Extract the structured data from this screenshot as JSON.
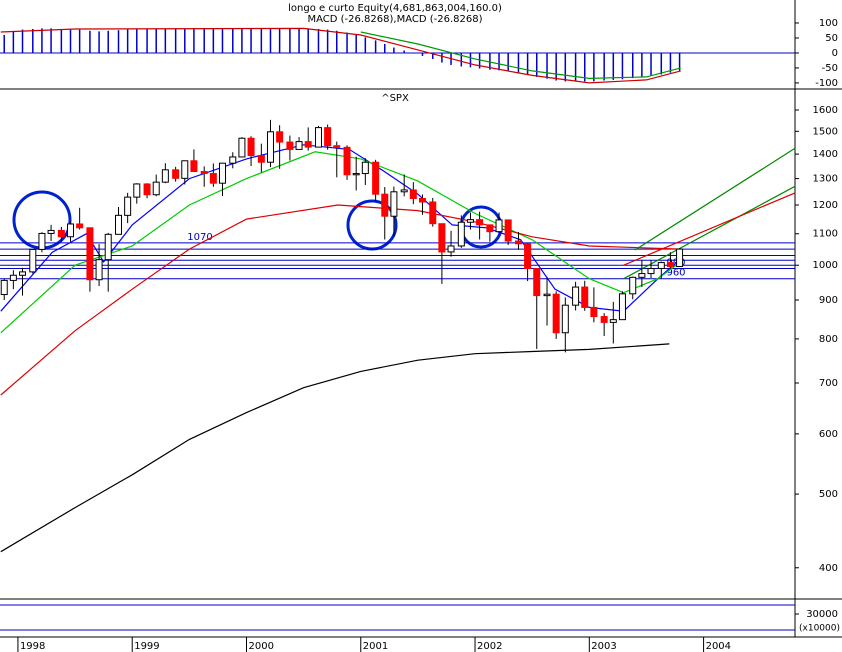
{
  "chart_data": [
    {
      "type": "bar",
      "title": "longo e curto Equity(4,681,863,004,160.0)",
      "subtitle": "MACD (-26.8268),MACD (-26.8268)",
      "x": [
        1997.88,
        1997.96,
        1998.04,
        1998.13,
        1998.21,
        1998.29,
        1998.38,
        1998.46,
        1998.54,
        1998.63,
        1998.71,
        1998.79,
        1998.88,
        1998.96,
        1999.04,
        1999.13,
        1999.21,
        1999.29,
        1999.38,
        1999.46,
        1999.54,
        1999.63,
        1999.71,
        1999.79,
        1999.88,
        1999.96,
        2000.04,
        2000.13,
        2000.21,
        2000.29,
        2000.38,
        2000.46,
        2000.54,
        2000.63,
        2000.71,
        2000.79,
        2000.88,
        2000.96,
        2001.04,
        2001.13,
        2001.21,
        2001.29,
        2001.38,
        2001.46,
        2001.54,
        2001.63,
        2001.71,
        2001.79,
        2001.88,
        2001.96,
        2002.04,
        2002.13,
        2002.21,
        2002.29,
        2002.38,
        2002.46,
        2002.54,
        2002.63,
        2002.71,
        2002.79,
        2002.88,
        2002.96,
        2003.04,
        2003.13,
        2003.21,
        2003.29,
        2003.38,
        2003.46,
        2003.54,
        2003.63,
        2003.71,
        2003.79
      ],
      "values": [
        60,
        70,
        78,
        80,
        82,
        82,
        80,
        80,
        78,
        74,
        72,
        74,
        76,
        78,
        80,
        80,
        80,
        80,
        80,
        80,
        80,
        80,
        80,
        80,
        80,
        80,
        82,
        82,
        82,
        82,
        82,
        82,
        82,
        80,
        78,
        74,
        68,
        60,
        52,
        42,
        30,
        18,
        8,
        0,
        -10,
        -20,
        -32,
        -40,
        -45,
        -48,
        -52,
        -56,
        -58,
        -62,
        -66,
        -72,
        -80,
        -86,
        -92,
        -95,
        -95,
        -95,
        -95,
        -92,
        -90,
        -88,
        -84,
        -80,
        -76,
        -72,
        -66,
        -60
      ],
      "color": "#0000cc",
      "lines": [
        {
          "color": "#cc0000",
          "x": [
            1997.85,
            1998.5,
            2000.5,
            2001.0,
            2001.5,
            2002.0,
            2002.5,
            2003.0,
            2003.5,
            2003.8
          ],
          "values": [
            70,
            80,
            82,
            60,
            10,
            -40,
            -75,
            -100,
            -90,
            -60
          ]
        },
        {
          "color": "#009900",
          "x": [
            2001.0,
            2001.5,
            2002.0,
            2002.5,
            2003.0,
            2003.5,
            2003.8
          ],
          "values": [
            70,
            30,
            -20,
            -60,
            -85,
            -80,
            -50
          ]
        }
      ],
      "xlim": [
        1997.843,
        2004.8
      ],
      "ylim": [
        -117,
        160
      ],
      "yticks": [
        100,
        50,
        0,
        -50,
        -100
      ]
    },
    {
      "type": "candlestick",
      "title": "^SPX",
      "x": [
        1997.88,
        1997.96,
        1998.04,
        1998.13,
        1998.21,
        1998.29,
        1998.38,
        1998.46,
        1998.54,
        1998.63,
        1998.71,
        1998.79,
        1998.88,
        1998.96,
        1999.04,
        1999.13,
        1999.21,
        1999.29,
        1999.38,
        1999.46,
        1999.54,
        1999.63,
        1999.71,
        1999.79,
        1999.88,
        1999.96,
        2000.04,
        2000.13,
        2000.21,
        2000.29,
        2000.38,
        2000.46,
        2000.54,
        2000.63,
        2000.71,
        2000.79,
        2000.88,
        2000.96,
        2001.04,
        2001.13,
        2001.21,
        2001.29,
        2001.38,
        2001.46,
        2001.54,
        2001.63,
        2001.71,
        2001.79,
        2001.88,
        2001.96,
        2002.04,
        2002.13,
        2002.21,
        2002.29,
        2002.38,
        2002.46,
        2002.54,
        2002.63,
        2002.71,
        2002.79,
        2002.88,
        2002.96,
        2003.04,
        2003.13,
        2003.21,
        2003.29,
        2003.38,
        2003.46,
        2003.54,
        2003.63,
        2003.71,
        2003.79
      ],
      "open": [
        915,
        955,
        970,
        980,
        1049,
        1101,
        1111,
        1090,
        1133,
        1120,
        957,
        1017,
        1098,
        1163,
        1229,
        1279,
        1238,
        1286,
        1335,
        1301,
        1372,
        1328,
        1320,
        1282,
        1362,
        1388,
        1469,
        1394,
        1366,
        1498,
        1452,
        1420,
        1454,
        1430,
        1517,
        1436,
        1429,
        1315,
        1320,
        1366,
        1240,
        1160,
        1249,
        1256,
        1224,
        1211,
        1134,
        1041,
        1060,
        1139,
        1148,
        1130,
        1107,
        1147,
        1076,
        1067,
        990,
        912,
        916,
        815,
        886,
        936,
        880,
        856,
        841,
        848,
        917,
        964,
        975,
        990,
        1008,
        996
      ],
      "high": [
        960,
        985,
        992,
        1050,
        1105,
        1130,
        1123,
        1139,
        1190,
        1121,
        1066,
        1103,
        1193,
        1245,
        1282,
        1282,
        1316,
        1362,
        1347,
        1373,
        1420,
        1349,
        1361,
        1364,
        1408,
        1474,
        1478,
        1445,
        1553,
        1528,
        1481,
        1474,
        1518,
        1525,
        1531,
        1454,
        1438,
        1389,
        1383,
        1376,
        1267,
        1269,
        1316,
        1286,
        1239,
        1226,
        1134,
        1110,
        1163,
        1173,
        1176,
        1131,
        1173,
        1147,
        1106,
        1070,
        990,
        965,
        924,
        907,
        951,
        954,
        935,
        865,
        895,
        924,
        966,
        1015,
        1015,
        1011,
        1040,
        1053
      ],
      "low": [
        900,
        930,
        912,
        975,
        1040,
        1076,
        1074,
        1074,
        1114,
        923,
        939,
        923,
        1098,
        1136,
        1205,
        1225,
        1232,
        1282,
        1288,
        1277,
        1328,
        1268,
        1268,
        1233,
        1341,
        1387,
        1350,
        1325,
        1346,
        1339,
        1373,
        1420,
        1415,
        1430,
        1419,
        1305,
        1295,
        1254,
        1275,
        1214,
        1081,
        1091,
        1232,
        1203,
        1165,
        1124,
        945,
        1026,
        1054,
        1114,
        1081,
        1074,
        1107,
        1063,
        1048,
        953,
        776,
        833,
        800,
        768,
        872,
        871,
        841,
        807,
        789,
        848,
        902,
        936,
        962,
        960,
        990,
        996
      ],
      "close": [
        955,
        970,
        980,
        1049,
        1101,
        1111,
        1090,
        1133,
        1120,
        957,
        1017,
        1098,
        1163,
        1229,
        1279,
        1238,
        1286,
        1335,
        1301,
        1372,
        1328,
        1320,
        1282,
        1362,
        1388,
        1469,
        1394,
        1366,
        1498,
        1452,
        1420,
        1454,
        1430,
        1517,
        1436,
        1429,
        1315,
        1320,
        1366,
        1240,
        1160,
        1249,
        1256,
        1224,
        1211,
        1134,
        1041,
        1060,
        1139,
        1148,
        1130,
        1107,
        1147,
        1076,
        1067,
        990,
        912,
        916,
        815,
        886,
        936,
        880,
        856,
        841,
        848,
        917,
        964,
        975,
        990,
        1008,
        996,
        1050
      ],
      "up_color": "#ffffff",
      "down_color": "#ff0000",
      "lines": [
        {
          "color": "#0000ff",
          "x": [
            1997.85,
            1998.3,
            1998.6,
            1998.75,
            1999.0,
            1999.5,
            2000.0,
            2000.5,
            2000.9,
            2001.2,
            2001.5,
            2001.8,
            2002.1,
            2002.4,
            2002.7,
            2003.0,
            2003.3,
            2003.6,
            2003.8
          ],
          "values": [
            870,
            1040,
            1100,
            1010,
            1130,
            1300,
            1380,
            1440,
            1420,
            1330,
            1240,
            1130,
            1120,
            1080,
            930,
            880,
            870,
            960,
            1020
          ]
        },
        {
          "color": "#00cc00",
          "x": [
            1997.85,
            1998.5,
            1999.0,
            1999.5,
            2000.0,
            2000.6,
            2001.0,
            2001.5,
            2002.0,
            2002.5,
            2003.0,
            2003.3,
            2003.6,
            2003.8
          ],
          "values": [
            815,
            1000,
            1060,
            1200,
            1300,
            1410,
            1380,
            1290,
            1170,
            1080,
            960,
            920,
            960,
            1010
          ]
        },
        {
          "color": "#dd0000",
          "x": [
            1997.85,
            1998.5,
            1999.0,
            1999.5,
            2000.0,
            2000.8,
            2001.5,
            2002.0,
            2002.5,
            2003.0,
            2003.8
          ],
          "values": [
            675,
            820,
            930,
            1050,
            1150,
            1200,
            1180,
            1140,
            1090,
            1060,
            1050
          ]
        },
        {
          "color": "#000000",
          "x": [
            1997.85,
            1998.5,
            1999.0,
            1999.5,
            2000.0,
            2000.5,
            2001.0,
            2001.5,
            2002.0,
            2002.5,
            2003.0,
            2003.7
          ],
          "values": [
            420,
            480,
            530,
            590,
            640,
            690,
            725,
            750,
            765,
            770,
            775,
            788
          ]
        }
      ],
      "trendlines": [
        {
          "color": "#008800",
          "x": [
            2003.4,
            2004.8
          ],
          "values": [
            1047,
            1425
          ]
        },
        {
          "color": "#008800",
          "x": [
            2003.3,
            2004.8
          ],
          "values": [
            960,
            1270
          ]
        },
        {
          "color": "#dd0000",
          "x": [
            2003.3,
            2004.8
          ],
          "values": [
            1000,
            1245
          ]
        }
      ],
      "levels": [
        1050,
        1030,
        1015,
        1000
      ],
      "labeled_levels": [
        1070,
        990,
        960
      ],
      "level_color": "#0000cc",
      "log_scale": true,
      "xlim": [
        1997.843,
        2004.8
      ],
      "xticks": [
        1998,
        1999,
        2000,
        2001,
        2002,
        2003,
        2004
      ],
      "ylim": [
        365,
        1700
      ],
      "yticks": [
        400,
        500,
        600,
        700,
        800,
        900,
        1000,
        1100,
        1200,
        1300,
        1400,
        1500,
        1600
      ]
    },
    {
      "type": "volume",
      "unit_label": "(x10000)",
      "ylim": [
        0,
        53333
      ],
      "yticks": [
        30000
      ]
    }
  ]
}
